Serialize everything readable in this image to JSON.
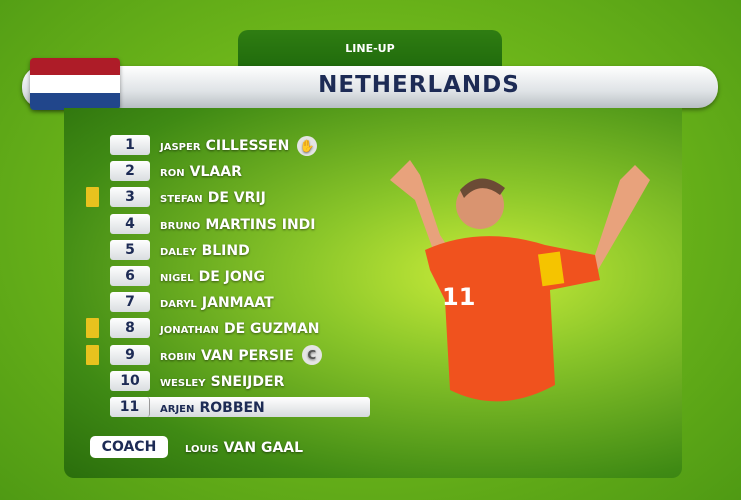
{
  "header": {
    "tab_label": "LINE-UP",
    "team": "NETHERLANDS",
    "flag_colors": [
      "#ae1c28",
      "#ffffff",
      "#21468b"
    ]
  },
  "players": [
    {
      "number": "1",
      "first": "JASPER",
      "last": "CILLESSEN",
      "card": false,
      "badge": "goalkeeper-glove-icon"
    },
    {
      "number": "2",
      "first": "RON",
      "last": "VLAAR",
      "card": false
    },
    {
      "number": "3",
      "first": "STEFAN",
      "last": "DE VRIJ",
      "card": true
    },
    {
      "number": "4",
      "first": "BRUNO",
      "last": "MARTINS INDI",
      "card": false
    },
    {
      "number": "5",
      "first": "DALEY",
      "last": "BLIND",
      "card": false
    },
    {
      "number": "6",
      "first": "NIGEL",
      "last": "DE JONG",
      "card": false
    },
    {
      "number": "7",
      "first": "DARYL",
      "last": "JANMAAT",
      "card": false
    },
    {
      "number": "8",
      "first": "JONATHAN",
      "last": "DE GUZMAN",
      "card": true
    },
    {
      "number": "9",
      "first": "ROBIN",
      "last": "VAN PERSIE",
      "card": true,
      "badge": "C"
    },
    {
      "number": "10",
      "first": "WESLEY",
      "last": "SNEIJDER",
      "card": false
    },
    {
      "number": "11",
      "first": "ARJEN",
      "last": "ROBBEN",
      "card": false,
      "highlighted": true
    }
  ],
  "coach": {
    "label": "COACH",
    "first": "LOUIS",
    "last": "VAN GAAL"
  },
  "colors": {
    "card": "#e8c21e",
    "navy": "#1d2b55",
    "shirt": "#f0521e"
  }
}
